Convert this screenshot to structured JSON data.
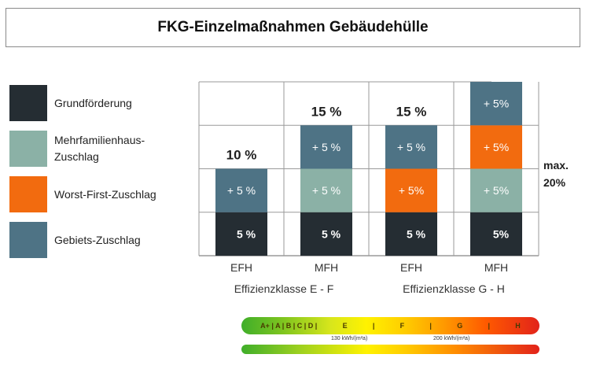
{
  "title": "FKG-Einzelmaßnahmen Gebäudehülle",
  "colors": {
    "grundfoerderung": "#252d33",
    "mehrfamilienhaus": "#8bb1a6",
    "worst_first": "#f26b0f",
    "gebiet": "#4e7385",
    "grid": "#9a9a9a"
  },
  "legend": [
    {
      "lines": [
        "Grundförderung"
      ],
      "color": "#252d33"
    },
    {
      "lines": [
        "Mehrfamilienhaus-",
        "Zuschlag"
      ],
      "color": "#8bb1a6"
    },
    {
      "lines": [
        "Worst-First-Zuschlag"
      ],
      "color": "#f26b0f"
    },
    {
      "lines": [
        "Gebiets-Zuschlag"
      ],
      "color": "#4e7385"
    }
  ],
  "chart_data": {
    "type": "bar",
    "stacked": true,
    "categories": [
      "EFH",
      "MFH",
      "EFH",
      "MFH"
    ],
    "groups": [
      {
        "label": "Effizienzklasse E - F",
        "categories": [
          "EFH",
          "MFH"
        ]
      },
      {
        "label": "Effizienzklasse G - H",
        "categories": [
          "EFH",
          "MFH"
        ]
      }
    ],
    "ylim": [
      0,
      20
    ],
    "grid": true,
    "series": [
      {
        "name": "Grundförderung",
        "values": [
          5,
          5,
          5,
          5
        ],
        "labels": [
          "5 %",
          "5 %",
          "5 %",
          "5%"
        ],
        "color": "#252d33"
      },
      {
        "name": "Mehrfamilienhaus-Zuschlag",
        "values": [
          0,
          5,
          0,
          5
        ],
        "labels": [
          "",
          "+ 5 %",
          "",
          "+ 5%"
        ],
        "color": "#8bb1a6"
      },
      {
        "name": "Worst-First-Zuschlag",
        "values": [
          0,
          0,
          5,
          5
        ],
        "labels": [
          "",
          "",
          "+ 5%",
          "+ 5%"
        ],
        "color": "#f26b0f"
      },
      {
        "name": "Gebiets-Zuschlag",
        "values": [
          5,
          5,
          5,
          5
        ],
        "labels": [
          "+ 5 %",
          "+ 5 %",
          "+ 5 %",
          "+ 5%"
        ],
        "color": "#4e7385"
      }
    ],
    "totals": [
      "10 %",
      "15 %",
      "15 %",
      ""
    ],
    "annotation": "max.\n20%"
  },
  "scale": {
    "classes": [
      "A+ | A | B | C | D |",
      "E",
      "|",
      "F",
      "|",
      "G",
      "|",
      "H"
    ],
    "kwh_130": "130 kWh/(m²a)",
    "kwh_200": "200 kWh/(m²a)"
  }
}
